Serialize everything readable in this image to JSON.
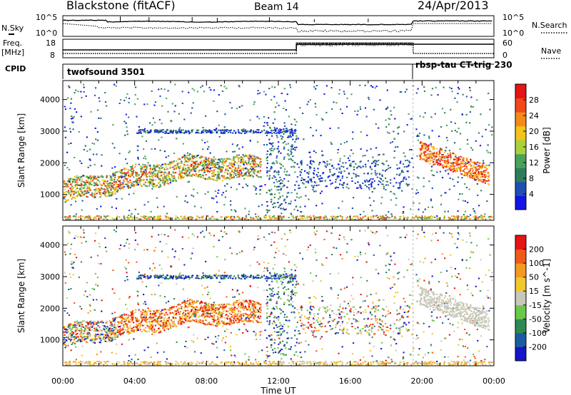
{
  "header": {
    "station": "Blackstone (fitACF)",
    "beam": "Beam 14",
    "date": "24/Apr/2013"
  },
  "top_panels": {
    "nsky_label": "N.Sky",
    "nsearch_label": "N.Search",
    "freq_label_1": "Freq.",
    "freq_label_2": "[MHz]",
    "nave_label": "Nave",
    "cpid_label": "CPID",
    "cpid_1": "twofsound 3501",
    "cpid_2": "rbsp-tau CT-trig 230",
    "noise_ticks": [
      "10^5",
      "10^0"
    ],
    "freq_ticks": [
      "18",
      "8"
    ],
    "nave_ticks": [
      "60",
      "0"
    ]
  },
  "colors": {
    "power": [
      "#1414e6",
      "#1e4fb4",
      "#2e7d5a",
      "#4aa25a",
      "#a8d23c",
      "#f2c41c",
      "#f58a1c",
      "#f04a18",
      "#e61414"
    ],
    "velocity": [
      "#1414c8",
      "#1e5aa0",
      "#2e8a50",
      "#6cc84a",
      "#c8c8b8",
      "#f0c830",
      "#f59a20",
      "#f05a18",
      "#e61414"
    ]
  },
  "chart_data": [
    {
      "type": "heatmap",
      "title": "Power",
      "ylabel": "Slant Range [km]",
      "xlabel": "Time UT",
      "y_ticks": [
        "1000",
        "2000",
        "3000",
        "4000"
      ],
      "x_ticks": [
        "00:00",
        "04:00",
        "08:00",
        "12:00",
        "16:00",
        "20:00",
        "00:00"
      ],
      "ylim": [
        180,
        4600
      ],
      "xlim": [
        0,
        24
      ],
      "colorbar_label": "Power [dB]",
      "colorbar_ticks": [
        "28",
        "24",
        "20",
        "16",
        "12",
        "8",
        "4"
      ],
      "colorbar_range": [
        0,
        32
      ]
    },
    {
      "type": "heatmap",
      "title": "Velocity",
      "ylabel": "Slant Range [km]",
      "xlabel": "Time UT",
      "y_ticks": [
        "1000",
        "2000",
        "3000",
        "4000"
      ],
      "x_ticks": [
        "00:00",
        "04:00",
        "08:00",
        "12:00",
        "16:00",
        "20:00",
        "00:00"
      ],
      "ylim": [
        180,
        4600
      ],
      "xlim": [
        0,
        24
      ],
      "colorbar_label": "Velocity [m s^-1]",
      "colorbar_ticks": [
        "200",
        "100",
        "50",
        "15",
        "-15",
        "-50",
        "-100",
        "-200"
      ],
      "colorbar_range": [
        -250,
        250
      ]
    }
  ]
}
